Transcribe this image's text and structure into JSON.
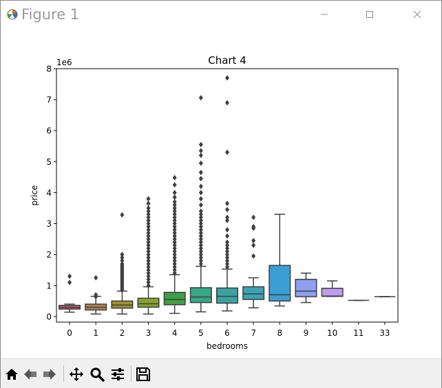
{
  "window": {
    "title": "Figure 1"
  },
  "toolbar": {
    "items": [
      {
        "icon": "home-icon"
      },
      {
        "icon": "back-arrow-icon"
      },
      {
        "icon": "forward-arrow-icon"
      },
      {
        "icon": "pan-icon"
      },
      {
        "icon": "zoom-icon"
      },
      {
        "icon": "configure-subplots-icon"
      },
      {
        "icon": "save-icon"
      }
    ]
  },
  "chart_data": {
    "type": "box",
    "title": "Chart 4",
    "xlabel": "bedrooms",
    "ylabel": "price",
    "y_multiplier_label": "1e6",
    "ylim": [
      -0.18,
      8.0
    ],
    "yticks": [
      0,
      1,
      2,
      3,
      4,
      5,
      6,
      7,
      8
    ],
    "categories": [
      "0",
      "1",
      "2",
      "3",
      "4",
      "5",
      "6",
      "7",
      "8",
      "9",
      "10",
      "11",
      "33"
    ],
    "boxes": [
      {
        "category": "0",
        "color": "#c15b6b",
        "whislo": 0.14,
        "q1": 0.24,
        "med": 0.29,
        "q3": 0.36,
        "whishi": 0.4,
        "fliers": [
          1.1,
          1.3
        ]
      },
      {
        "category": "1",
        "color": "#b48452",
        "whislo": 0.08,
        "q1": 0.21,
        "med": 0.3,
        "q3": 0.4,
        "whishi": 0.65,
        "fliers": [
          0.64,
          0.7,
          1.25
        ]
      },
      {
        "category": "2",
        "color": "#a0922e",
        "whislo": 0.08,
        "q1": 0.27,
        "med": 0.37,
        "q3": 0.5,
        "whishi": 0.82,
        "fliers": [
          0.85,
          0.9,
          0.95,
          1.0,
          1.05,
          1.1,
          1.15,
          1.2,
          1.25,
          1.3,
          1.35,
          1.4,
          1.45,
          1.5,
          1.55,
          1.6,
          1.65,
          1.7,
          1.8,
          1.9,
          2.0,
          3.28
        ]
      },
      {
        "category": "3",
        "color": "#86a22d",
        "whislo": 0.08,
        "q1": 0.3,
        "med": 0.41,
        "q3": 0.59,
        "whishi": 0.96,
        "fliers": [
          1.0,
          1.1,
          1.2,
          1.3,
          1.4,
          1.5,
          1.6,
          1.7,
          1.8,
          1.9,
          2.0,
          2.1,
          2.2,
          2.3,
          2.4,
          2.5,
          2.6,
          2.7,
          2.8,
          2.9,
          3.0,
          3.1,
          3.2,
          3.3,
          3.4,
          3.5,
          3.65,
          3.8
        ]
      },
      {
        "category": "4",
        "color": "#3da045",
        "whislo": 0.1,
        "q1": 0.38,
        "med": 0.55,
        "q3": 0.78,
        "whishi": 1.35,
        "fliers": [
          1.4,
          1.5,
          1.6,
          1.7,
          1.8,
          1.9,
          2.0,
          2.1,
          2.2,
          2.3,
          2.4,
          2.5,
          2.6,
          2.7,
          2.8,
          2.9,
          3.0,
          3.1,
          3.2,
          3.3,
          3.4,
          3.5,
          3.6,
          3.7,
          3.85,
          4.0,
          4.25,
          4.48
        ]
      },
      {
        "category": "5",
        "color": "#37a785",
        "whislo": 0.15,
        "q1": 0.45,
        "med": 0.63,
        "q3": 0.93,
        "whishi": 1.62,
        "fliers": [
          1.7,
          1.8,
          1.9,
          2.0,
          2.1,
          2.2,
          2.3,
          2.4,
          2.5,
          2.6,
          2.7,
          2.8,
          2.9,
          3.0,
          3.1,
          3.2,
          3.3,
          3.4,
          3.6,
          3.8,
          4.0,
          4.2,
          4.45,
          4.65,
          4.95,
          5.2,
          5.35,
          5.55,
          7.06
        ]
      },
      {
        "category": "6",
        "color": "#39a49f",
        "whislo": 0.18,
        "q1": 0.43,
        "med": 0.65,
        "q3": 0.92,
        "whishi": 1.53,
        "fliers": [
          1.6,
          1.7,
          1.8,
          1.9,
          2.0,
          2.1,
          2.2,
          2.3,
          2.4,
          2.6,
          2.8,
          3.1,
          3.2,
          3.45,
          3.65,
          5.3,
          6.9,
          7.7
        ]
      },
      {
        "category": "7",
        "color": "#3aa3b5",
        "whislo": 0.28,
        "q1": 0.55,
        "med": 0.73,
        "q3": 0.96,
        "whishi": 1.25,
        "fliers": [
          1.95,
          2.3,
          2.45,
          2.85,
          2.9,
          3.2
        ]
      },
      {
        "category": "8",
        "color": "#3b9ed3",
        "whislo": 0.34,
        "q1": 0.5,
        "med": 0.7,
        "q3": 1.65,
        "whishi": 3.3,
        "fliers": []
      },
      {
        "category": "9",
        "color": "#8e9fef",
        "whislo": 0.45,
        "q1": 0.64,
        "med": 0.82,
        "q3": 1.2,
        "whishi": 1.4,
        "fliers": []
      },
      {
        "category": "10",
        "color": "#c19bee",
        "whislo": 0.65,
        "q1": 0.65,
        "med": 0.66,
        "q3": 0.91,
        "whishi": 1.15,
        "fliers": []
      },
      {
        "category": "11",
        "color": "#d97fe0",
        "whislo": 0.52,
        "q1": 0.52,
        "med": 0.52,
        "q3": 0.52,
        "whishi": 0.52,
        "fliers": []
      },
      {
        "category": "33",
        "color": "#e07dc0",
        "whislo": 0.64,
        "q1": 0.64,
        "med": 0.64,
        "q3": 0.64,
        "whishi": 0.64,
        "fliers": []
      }
    ]
  }
}
